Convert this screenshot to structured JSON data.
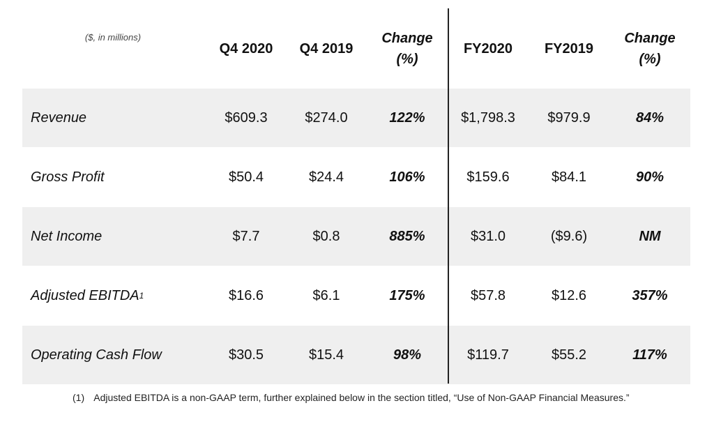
{
  "header": {
    "units": "($, in millions)",
    "q4_2020": "Q4 2020",
    "q4_2019": "Q4 2019",
    "change_q_line1": "Change",
    "change_q_line2": "(%)",
    "fy2020": "FY2020",
    "fy2019": "FY2019",
    "change_fy_line1": "Change",
    "change_fy_line2": "(%)"
  },
  "rows": [
    {
      "label": "Revenue",
      "sup": "",
      "q4_2020": "$609.3",
      "q4_2019": "$274.0",
      "q_change": "122%",
      "fy2020": "$1,798.3",
      "fy2019": "$979.9",
      "fy_change": "84%"
    },
    {
      "label": "Gross Profit",
      "sup": "",
      "q4_2020": "$50.4",
      "q4_2019": "$24.4",
      "q_change": "106%",
      "fy2020": "$159.6",
      "fy2019": "$84.1",
      "fy_change": "90%"
    },
    {
      "label": "Net Income",
      "sup": "",
      "q4_2020": "$7.7",
      "q4_2019": "$0.8",
      "q_change": "885%",
      "fy2020": "$31.0",
      "fy2019": "($9.6)",
      "fy_change": "NM"
    },
    {
      "label": "Adjusted EBITDA",
      "sup": "1",
      "q4_2020": "$16.6",
      "q4_2019": "$6.1",
      "q_change": "175%",
      "fy2020": "$57.8",
      "fy2019": "$12.6",
      "fy_change": "357%"
    },
    {
      "label": "Operating Cash Flow",
      "sup": "",
      "q4_2020": "$30.5",
      "q4_2019": "$15.4",
      "q_change": "98%",
      "fy2020": "$119.7",
      "fy2019": "$55.2",
      "fy_change": "117%"
    }
  ],
  "footnote": {
    "number": "(1)",
    "text": "Adjusted EBITDA is a non-GAAP term, further explained below in the section titled, “Use of Non-GAAP Financial Measures.”"
  }
}
